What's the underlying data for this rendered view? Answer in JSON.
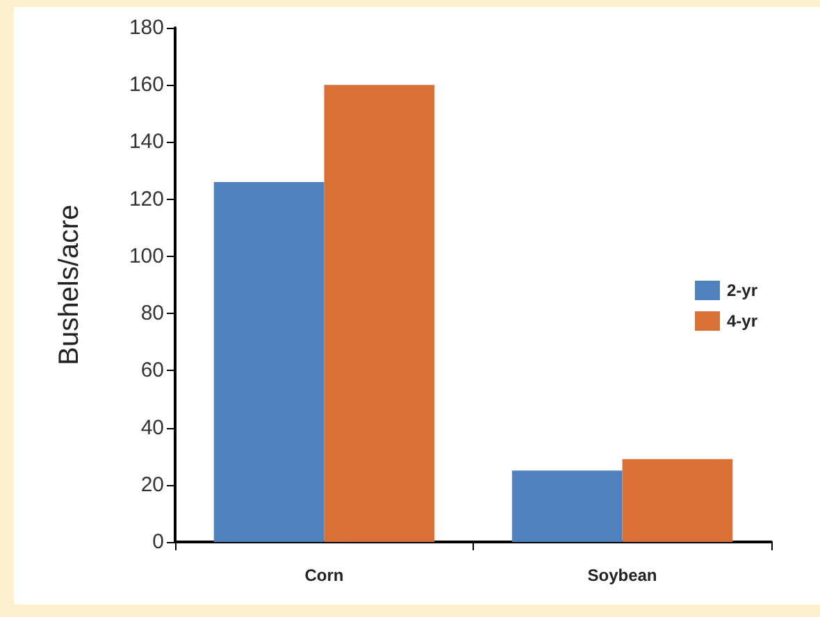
{
  "chart_data": {
    "type": "bar",
    "ylabel": "Bushels/acre",
    "categories": [
      "Corn",
      "Soybean"
    ],
    "series": [
      {
        "name": "2-yr",
        "color": "#4f81bd",
        "values": [
          126,
          25
        ]
      },
      {
        "name": "4-yr",
        "color": "#d97036",
        "values": [
          160,
          29
        ]
      }
    ],
    "ylim": [
      0,
      180
    ],
    "yticks": [
      0,
      20,
      40,
      60,
      80,
      100,
      120,
      140,
      160,
      180
    ],
    "grid": false,
    "legend": "right"
  }
}
